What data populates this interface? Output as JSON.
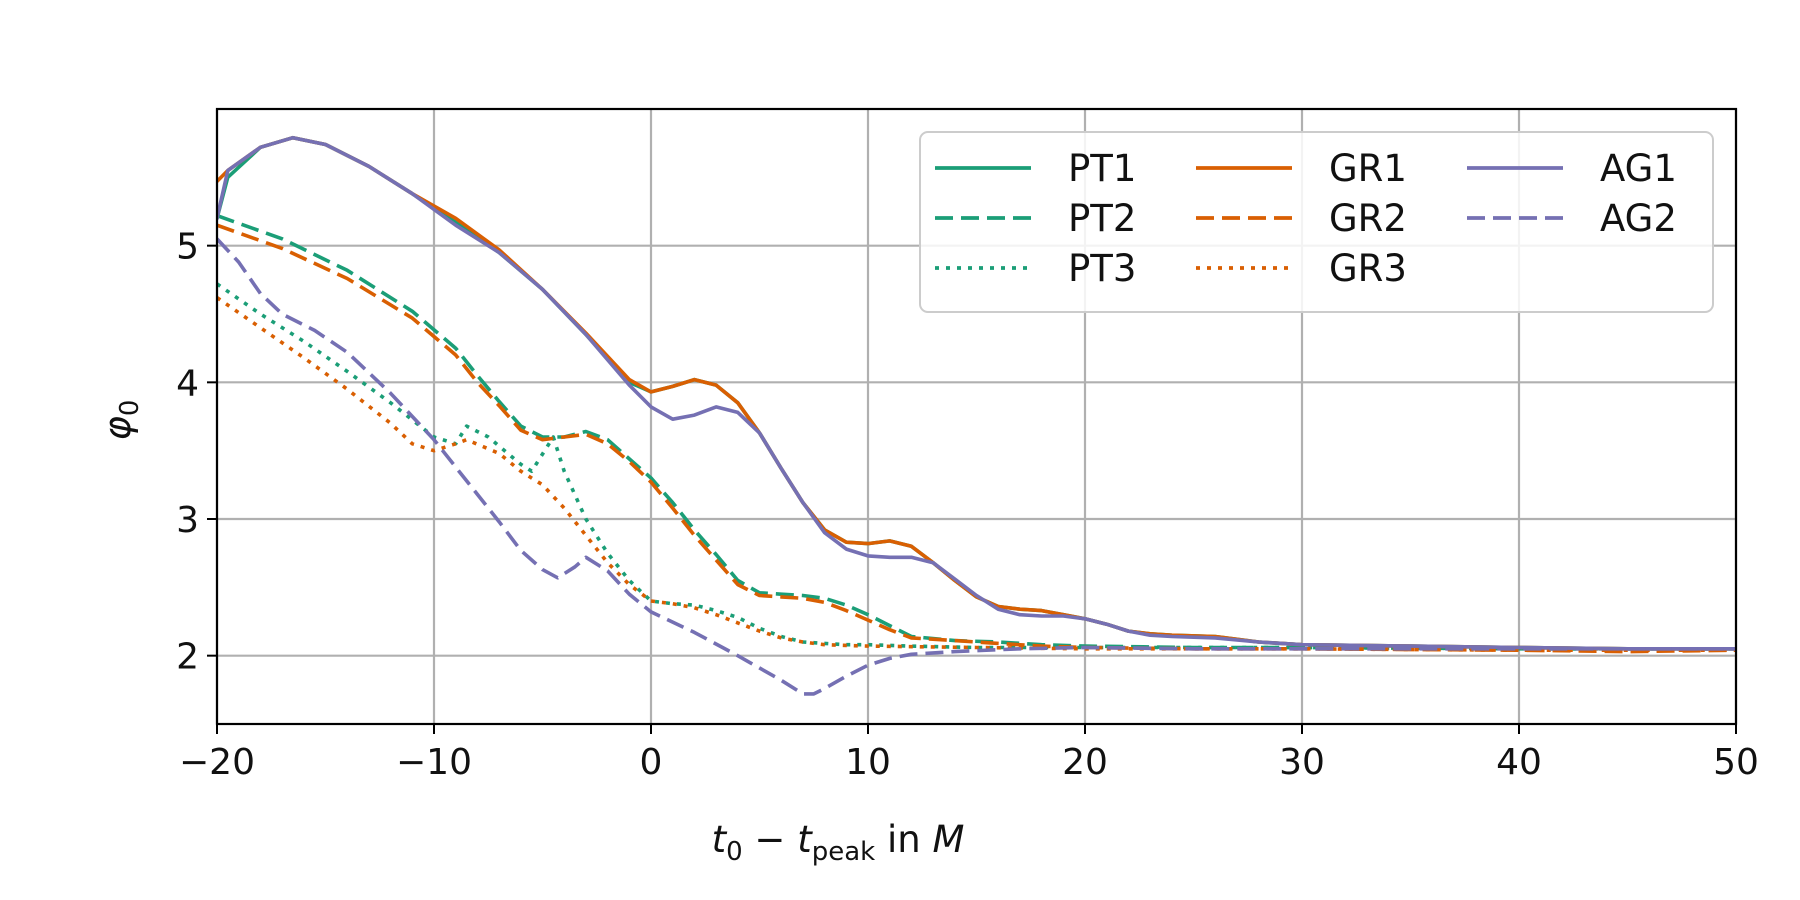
{
  "chart_data": {
    "type": "line",
    "title": "",
    "xlabel": {
      "base": "t",
      "sub0": "0",
      "minus": " − ",
      "base2": "t",
      "sub1": "peak",
      "tail": " in ",
      "unit": "M"
    },
    "ylabel": {
      "base": "φ",
      "sub": "0"
    },
    "xlim": [
      -20,
      50
    ],
    "ylim": [
      1.5,
      6.0
    ],
    "xticks": [
      -20,
      -10,
      0,
      10,
      20,
      30,
      40,
      50
    ],
    "xtick_labels": [
      "−20",
      "−10",
      "0",
      "10",
      "20",
      "30",
      "40",
      "50"
    ],
    "yticks": [
      2,
      3,
      4,
      5
    ],
    "ytick_labels": [
      "2",
      "3",
      "4",
      "5"
    ],
    "grid": true,
    "legend_location": "top-right",
    "series": [
      {
        "name": "PT1",
        "color": "#1b9e77",
        "style": "solid",
        "points": [
          [
            -20,
            5.2
          ],
          [
            -19.5,
            5.5
          ],
          [
            -18,
            5.72
          ],
          [
            -16.5,
            5.79
          ],
          [
            -15,
            5.74
          ],
          [
            -13,
            5.58
          ],
          [
            -11,
            5.38
          ],
          [
            -9,
            5.17
          ],
          [
            -7,
            4.95
          ],
          [
            -5,
            4.68
          ],
          [
            -3,
            4.35
          ],
          [
            -1,
            4.0
          ],
          [
            0,
            3.93
          ],
          [
            1,
            3.97
          ],
          [
            2,
            4.02
          ],
          [
            3,
            3.98
          ],
          [
            4,
            3.85
          ],
          [
            5,
            3.63
          ],
          [
            6,
            3.37
          ],
          [
            7,
            3.12
          ],
          [
            8,
            2.92
          ],
          [
            9,
            2.83
          ],
          [
            10,
            2.82
          ],
          [
            11,
            2.84
          ],
          [
            12,
            2.8
          ],
          [
            13,
            2.68
          ],
          [
            14,
            2.55
          ],
          [
            15,
            2.43
          ],
          [
            16,
            2.36
          ],
          [
            17,
            2.34
          ],
          [
            18,
            2.33
          ],
          [
            19,
            2.3
          ],
          [
            20,
            2.27
          ],
          [
            21,
            2.23
          ],
          [
            22,
            2.18
          ],
          [
            23,
            2.16
          ],
          [
            24,
            2.15
          ],
          [
            26,
            2.14
          ],
          [
            28,
            2.1
          ],
          [
            30,
            2.08
          ],
          [
            35,
            2.07
          ],
          [
            40,
            2.06
          ],
          [
            45,
            2.05
          ],
          [
            50,
            2.05
          ]
        ]
      },
      {
        "name": "PT2",
        "color": "#1b9e77",
        "style": "dashed",
        "points": [
          [
            -20,
            5.22
          ],
          [
            -17,
            5.05
          ],
          [
            -14,
            4.82
          ],
          [
            -11,
            4.52
          ],
          [
            -9,
            4.25
          ],
          [
            -8,
            4.05
          ],
          [
            -7,
            3.86
          ],
          [
            -6,
            3.68
          ],
          [
            -5,
            3.6
          ],
          [
            -4,
            3.6
          ],
          [
            -3,
            3.64
          ],
          [
            -2,
            3.58
          ],
          [
            -1,
            3.44
          ],
          [
            0,
            3.3
          ],
          [
            1,
            3.12
          ],
          [
            2,
            2.92
          ],
          [
            3,
            2.74
          ],
          [
            4,
            2.55
          ],
          [
            5,
            2.46
          ],
          [
            6,
            2.45
          ],
          [
            7,
            2.44
          ],
          [
            8,
            2.42
          ],
          [
            9,
            2.37
          ],
          [
            10,
            2.3
          ],
          [
            11,
            2.22
          ],
          [
            12,
            2.14
          ],
          [
            14,
            2.11
          ],
          [
            16,
            2.1
          ],
          [
            18,
            2.08
          ],
          [
            20,
            2.07
          ],
          [
            25,
            2.06
          ],
          [
            30,
            2.06
          ],
          [
            40,
            2.05
          ],
          [
            50,
            2.05
          ]
        ]
      },
      {
        "name": "PT3",
        "color": "#1b9e77",
        "style": "dotted",
        "points": [
          [
            -20,
            4.72
          ],
          [
            -18,
            4.5
          ],
          [
            -16,
            4.3
          ],
          [
            -14,
            4.08
          ],
          [
            -12,
            3.85
          ],
          [
            -10,
            3.6
          ],
          [
            -9,
            3.55
          ],
          [
            -8.5,
            3.68
          ],
          [
            -7.5,
            3.6
          ],
          [
            -6,
            3.4
          ],
          [
            -5.5,
            3.35
          ],
          [
            -4.5,
            3.6
          ],
          [
            -4,
            3.35
          ],
          [
            -3,
            3.0
          ],
          [
            -2,
            2.75
          ],
          [
            -1,
            2.55
          ],
          [
            0,
            2.4
          ],
          [
            1,
            2.38
          ],
          [
            2,
            2.37
          ],
          [
            3,
            2.33
          ],
          [
            4,
            2.28
          ],
          [
            5,
            2.2
          ],
          [
            6,
            2.14
          ],
          [
            7,
            2.1
          ],
          [
            8,
            2.09
          ],
          [
            9,
            2.08
          ],
          [
            10,
            2.08
          ],
          [
            12,
            2.07
          ],
          [
            15,
            2.06
          ],
          [
            20,
            2.06
          ],
          [
            30,
            2.06
          ],
          [
            40,
            2.05
          ],
          [
            50,
            2.05
          ]
        ]
      },
      {
        "name": "GR1",
        "color": "#d95f02",
        "style": "solid",
        "points": [
          [
            -20,
            5.47
          ],
          [
            -19.5,
            5.55
          ],
          [
            -18,
            5.72
          ],
          [
            -16.5,
            5.79
          ],
          [
            -15,
            5.74
          ],
          [
            -13,
            5.58
          ],
          [
            -11,
            5.38
          ],
          [
            -9,
            5.2
          ],
          [
            -7,
            4.97
          ],
          [
            -5,
            4.68
          ],
          [
            -3,
            4.36
          ],
          [
            -1,
            4.02
          ],
          [
            0,
            3.93
          ],
          [
            1,
            3.97
          ],
          [
            2,
            4.02
          ],
          [
            3,
            3.98
          ],
          [
            4,
            3.85
          ],
          [
            5,
            3.63
          ],
          [
            6,
            3.37
          ],
          [
            7,
            3.12
          ],
          [
            8,
            2.92
          ],
          [
            9,
            2.83
          ],
          [
            10,
            2.82
          ],
          [
            11,
            2.84
          ],
          [
            12,
            2.8
          ],
          [
            13,
            2.68
          ],
          [
            14,
            2.55
          ],
          [
            15,
            2.43
          ],
          [
            16,
            2.36
          ],
          [
            17,
            2.34
          ],
          [
            18,
            2.33
          ],
          [
            19,
            2.3
          ],
          [
            20,
            2.27
          ],
          [
            21,
            2.23
          ],
          [
            22,
            2.18
          ],
          [
            23,
            2.16
          ],
          [
            24,
            2.15
          ],
          [
            26,
            2.14
          ],
          [
            28,
            2.1
          ],
          [
            30,
            2.08
          ],
          [
            35,
            2.07
          ],
          [
            40,
            2.06
          ],
          [
            45,
            2.05
          ],
          [
            50,
            2.05
          ]
        ]
      },
      {
        "name": "GR2",
        "color": "#d95f02",
        "style": "dashed",
        "points": [
          [
            -20,
            5.15
          ],
          [
            -17,
            4.98
          ],
          [
            -14,
            4.76
          ],
          [
            -11,
            4.47
          ],
          [
            -9,
            4.2
          ],
          [
            -8,
            4.0
          ],
          [
            -7,
            3.83
          ],
          [
            -6,
            3.65
          ],
          [
            -5,
            3.58
          ],
          [
            -4,
            3.6
          ],
          [
            -3,
            3.62
          ],
          [
            -2,
            3.55
          ],
          [
            -1,
            3.42
          ],
          [
            0,
            3.27
          ],
          [
            1,
            3.08
          ],
          [
            2,
            2.88
          ],
          [
            3,
            2.7
          ],
          [
            4,
            2.52
          ],
          [
            5,
            2.44
          ],
          [
            6,
            2.43
          ],
          [
            7,
            2.42
          ],
          [
            8,
            2.39
          ],
          [
            9,
            2.33
          ],
          [
            10,
            2.26
          ],
          [
            11,
            2.19
          ],
          [
            12,
            2.13
          ],
          [
            14,
            2.11
          ],
          [
            16,
            2.09
          ],
          [
            18,
            2.07
          ],
          [
            20,
            2.06
          ],
          [
            25,
            2.05
          ],
          [
            30,
            2.05
          ],
          [
            40,
            2.04
          ],
          [
            45,
            2.03
          ],
          [
            50,
            2.04
          ]
        ]
      },
      {
        "name": "GR3",
        "color": "#d95f02",
        "style": "dotted",
        "points": [
          [
            -20,
            4.62
          ],
          [
            -18,
            4.4
          ],
          [
            -16,
            4.18
          ],
          [
            -14,
            3.95
          ],
          [
            -12,
            3.7
          ],
          [
            -11,
            3.55
          ],
          [
            -10,
            3.5
          ],
          [
            -9,
            3.55
          ],
          [
            -8.5,
            3.58
          ],
          [
            -7,
            3.48
          ],
          [
            -6,
            3.35
          ],
          [
            -5,
            3.25
          ],
          [
            -4,
            3.08
          ],
          [
            -3,
            2.88
          ],
          [
            -2,
            2.68
          ],
          [
            -1,
            2.52
          ],
          [
            0,
            2.4
          ],
          [
            1,
            2.38
          ],
          [
            2,
            2.35
          ],
          [
            3,
            2.3
          ],
          [
            4,
            2.24
          ],
          [
            5,
            2.18
          ],
          [
            6,
            2.13
          ],
          [
            7,
            2.1
          ],
          [
            8,
            2.08
          ],
          [
            10,
            2.07
          ],
          [
            15,
            2.06
          ],
          [
            20,
            2.05
          ],
          [
            30,
            2.05
          ],
          [
            40,
            2.04
          ],
          [
            50,
            2.04
          ]
        ]
      },
      {
        "name": "AG1",
        "color": "#7570b3",
        "style": "solid",
        "points": [
          [
            -20,
            5.2
          ],
          [
            -19.5,
            5.55
          ],
          [
            -18,
            5.72
          ],
          [
            -16.5,
            5.79
          ],
          [
            -15,
            5.74
          ],
          [
            -13,
            5.58
          ],
          [
            -11,
            5.38
          ],
          [
            -9,
            5.15
          ],
          [
            -7,
            4.95
          ],
          [
            -5,
            4.68
          ],
          [
            -3,
            4.35
          ],
          [
            -1,
            3.98
          ],
          [
            0,
            3.82
          ],
          [
            1,
            3.73
          ],
          [
            2,
            3.76
          ],
          [
            3,
            3.82
          ],
          [
            4,
            3.78
          ],
          [
            5,
            3.63
          ],
          [
            6,
            3.37
          ],
          [
            7,
            3.12
          ],
          [
            8,
            2.9
          ],
          [
            9,
            2.78
          ],
          [
            10,
            2.73
          ],
          [
            11,
            2.72
          ],
          [
            12,
            2.72
          ],
          [
            13,
            2.68
          ],
          [
            14,
            2.56
          ],
          [
            15,
            2.44
          ],
          [
            16,
            2.34
          ],
          [
            17,
            2.3
          ],
          [
            18,
            2.29
          ],
          [
            19,
            2.29
          ],
          [
            20,
            2.27
          ],
          [
            21,
            2.23
          ],
          [
            22,
            2.18
          ],
          [
            23,
            2.15
          ],
          [
            24,
            2.14
          ],
          [
            26,
            2.13
          ],
          [
            28,
            2.1
          ],
          [
            30,
            2.08
          ],
          [
            35,
            2.07
          ],
          [
            40,
            2.06
          ],
          [
            45,
            2.05
          ],
          [
            50,
            2.05
          ]
        ]
      },
      {
        "name": "AG2",
        "color": "#7570b3",
        "style": "dashed",
        "points": [
          [
            -20,
            5.05
          ],
          [
            -19,
            4.88
          ],
          [
            -18,
            4.65
          ],
          [
            -17,
            4.5
          ],
          [
            -15.5,
            4.38
          ],
          [
            -14,
            4.22
          ],
          [
            -12,
            3.92
          ],
          [
            -10,
            3.58
          ],
          [
            -9,
            3.38
          ],
          [
            -8,
            3.18
          ],
          [
            -7,
            2.98
          ],
          [
            -6,
            2.77
          ],
          [
            -5,
            2.63
          ],
          [
            -4.3,
            2.57
          ],
          [
            -3.5,
            2.65
          ],
          [
            -3,
            2.72
          ],
          [
            -2,
            2.62
          ],
          [
            -1,
            2.45
          ],
          [
            0,
            2.32
          ],
          [
            2,
            2.17
          ],
          [
            4,
            2.0
          ],
          [
            6,
            1.82
          ],
          [
            7,
            1.72
          ],
          [
            7.5,
            1.72
          ],
          [
            8,
            1.76
          ],
          [
            9,
            1.85
          ],
          [
            10,
            1.93
          ],
          [
            11,
            1.98
          ],
          [
            12,
            2.01
          ],
          [
            14,
            2.03
          ],
          [
            17,
            2.05
          ],
          [
            20,
            2.06
          ],
          [
            25,
            2.05
          ],
          [
            30,
            2.05
          ],
          [
            40,
            2.05
          ],
          [
            50,
            2.05
          ]
        ]
      }
    ]
  }
}
